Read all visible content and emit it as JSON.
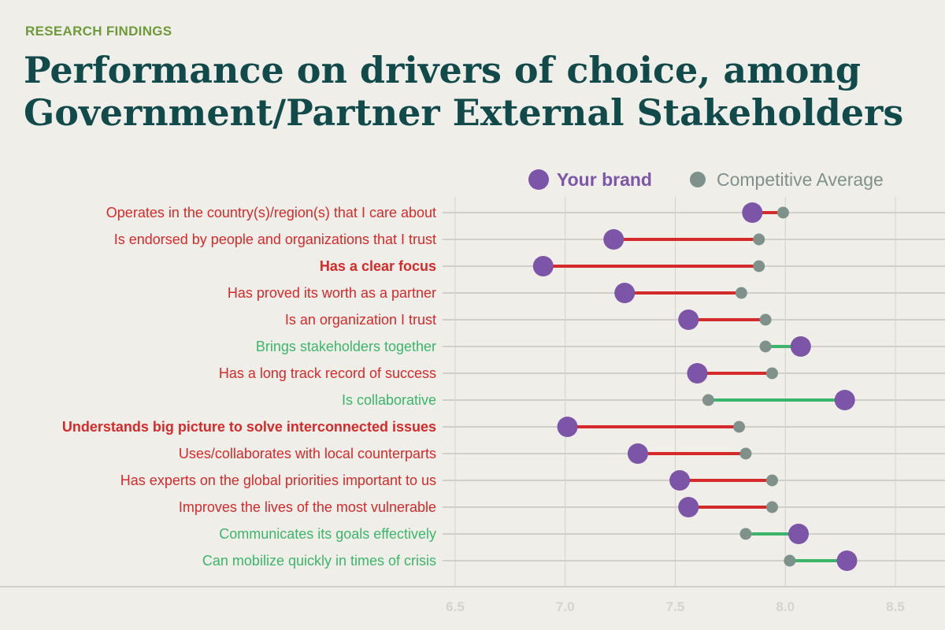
{
  "header": {
    "eyebrow": "RESEARCH FINDINGS",
    "title": "Performance on drivers of choice, among Government/Partner External Stakeholders"
  },
  "colors": {
    "brand": "#7c55a8",
    "competitive": "#7f918b",
    "worse": "#d42a2a",
    "better": "#3cb56b",
    "gridline": "#c6c5bf"
  },
  "chart_data": {
    "type": "dumbbell",
    "title": "Performance on drivers of choice, among Government/Partner External Stakeholders",
    "xlabel": "",
    "ylabel": "",
    "xlim": [
      6.5,
      8.5
    ],
    "xticks": [
      "6.5",
      "7.0",
      "7.5",
      "8.0",
      "8.5"
    ],
    "grid": true,
    "legend_position": "top-right",
    "legend": [
      {
        "key": "brand",
        "label": "Your brand"
      },
      {
        "key": "competitive",
        "label": "Competitive Average"
      }
    ],
    "categories": [
      {
        "label": "Operates in the country(s)/region(s) that I care about",
        "brand": 7.85,
        "competitive": 7.99,
        "bold": false
      },
      {
        "label": "Is endorsed by people and organizations that I trust",
        "brand": 7.22,
        "competitive": 7.88,
        "bold": false
      },
      {
        "label": "Has a clear focus",
        "brand": 6.9,
        "competitive": 7.88,
        "bold": true
      },
      {
        "label": "Has proved its worth as a partner",
        "brand": 7.27,
        "competitive": 7.8,
        "bold": false
      },
      {
        "label": "Is an organization I trust",
        "brand": 7.56,
        "competitive": 7.91,
        "bold": false
      },
      {
        "label": "Brings stakeholders together",
        "brand": 8.07,
        "competitive": 7.91,
        "bold": false
      },
      {
        "label": "Has a long track record of success",
        "brand": 7.6,
        "competitive": 7.94,
        "bold": false
      },
      {
        "label": "Is collaborative",
        "brand": 8.27,
        "competitive": 7.65,
        "bold": false
      },
      {
        "label": "Understands big picture to solve interconnected issues",
        "brand": 7.01,
        "competitive": 7.79,
        "bold": true
      },
      {
        "label": "Uses/collaborates with local counterparts",
        "brand": 7.33,
        "competitive": 7.82,
        "bold": false
      },
      {
        "label": "Has experts on the global priorities important to us",
        "brand": 7.52,
        "competitive": 7.94,
        "bold": false
      },
      {
        "label": "Improves the lives of the most vulnerable",
        "brand": 7.56,
        "competitive": 7.94,
        "bold": false
      },
      {
        "label": "Communicates its goals effectively",
        "brand": 8.06,
        "competitive": 7.82,
        "bold": false
      },
      {
        "label": "Can mobilize quickly in times of crisis",
        "brand": 8.28,
        "competitive": 8.02,
        "bold": false
      }
    ]
  }
}
